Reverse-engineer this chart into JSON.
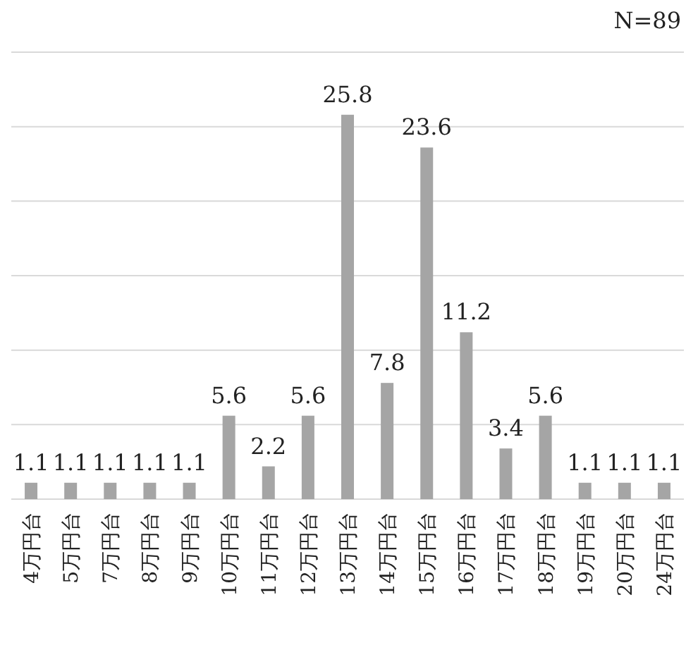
{
  "chart_data": {
    "type": "bar",
    "categories": [
      "4万円台",
      "5万円台",
      "7万円台",
      "8万円台",
      "9万円台",
      "10万円台",
      "11万円台",
      "12万円台",
      "13万円台",
      "14万円台",
      "15万円台",
      "16万円台",
      "17万円台",
      "18万円台",
      "19万円台",
      "20万円台",
      "24万円台"
    ],
    "values": [
      1.1,
      1.1,
      1.1,
      1.1,
      1.1,
      5.6,
      2.2,
      5.6,
      25.8,
      7.8,
      23.6,
      11.2,
      3.4,
      5.6,
      1.1,
      1.1,
      1.1
    ],
    "color": "#a5a5a5",
    "ylim": [
      0,
      30
    ],
    "yticks": [
      {
        "value": 0,
        "label": null
      },
      {
        "value": 5,
        "label": null
      },
      {
        "value": 10,
        "label": null
      },
      {
        "value": 15,
        "label": null
      },
      {
        "value": 20,
        "label": null
      },
      {
        "value": 25,
        "label": null
      },
      {
        "value": 30,
        "label": null
      }
    ],
    "grid": "y",
    "tick_labels": "x",
    "data_labels": true,
    "annotations": [
      "N=89"
    ]
  }
}
